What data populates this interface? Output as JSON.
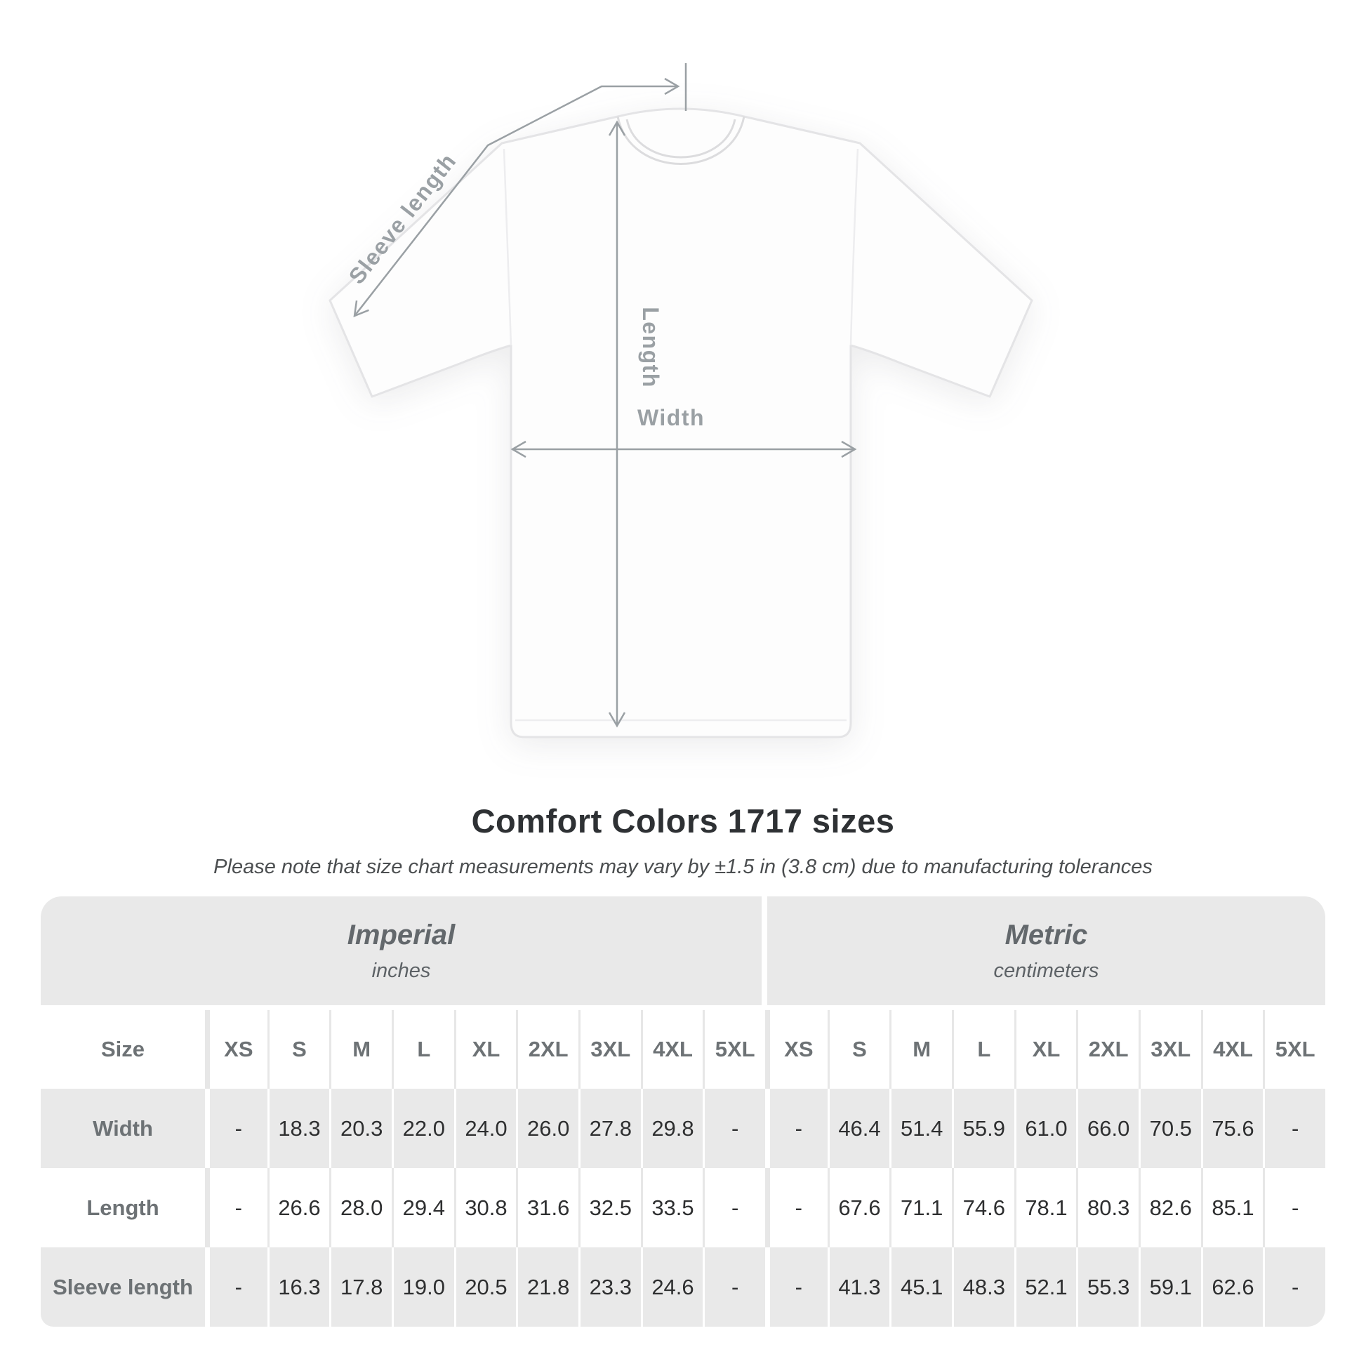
{
  "diagram": {
    "sleeve_length_label": "Sleeve length",
    "length_label": "Length",
    "width_label": "Width"
  },
  "heading": {
    "title": "Comfort Colors 1717 sizes",
    "subtitle": "Please note that size chart measurements may vary by ±1.5 in (3.8 cm) due to manufacturing tolerances"
  },
  "table": {
    "imperial": {
      "title": "Imperial",
      "unit": "inches"
    },
    "metric": {
      "title": "Metric",
      "unit": "centimeters"
    },
    "size_label": "Size",
    "sizes": [
      "XS",
      "S",
      "M",
      "L",
      "XL",
      "2XL",
      "3XL",
      "4XL",
      "5XL"
    ],
    "rows": [
      {
        "label": "Width",
        "imperial": [
          "-",
          "18.3",
          "20.3",
          "22.0",
          "24.0",
          "26.0",
          "27.8",
          "29.8",
          "-"
        ],
        "metric": [
          "-",
          "46.4",
          "51.4",
          "55.9",
          "61.0",
          "66.0",
          "70.5",
          "75.6",
          "-"
        ]
      },
      {
        "label": "Length",
        "imperial": [
          "-",
          "26.6",
          "28.0",
          "29.4",
          "30.8",
          "31.6",
          "32.5",
          "33.5",
          "-"
        ],
        "metric": [
          "-",
          "67.6",
          "71.1",
          "74.6",
          "78.1",
          "80.3",
          "82.6",
          "85.1",
          "-"
        ]
      },
      {
        "label": "Sleeve length",
        "imperial": [
          "-",
          "16.3",
          "17.8",
          "19.0",
          "20.5",
          "21.8",
          "23.3",
          "24.6",
          "-"
        ],
        "metric": [
          "-",
          "41.3",
          "45.1",
          "48.3",
          "52.1",
          "55.3",
          "59.1",
          "62.6",
          "-"
        ]
      }
    ]
  },
  "colors": {
    "table_band_gray": "#e9e9e9",
    "header_text_gray": "#6d7275",
    "value_text": "#2e2f30",
    "dimension_line_gray": "#9aa0a4",
    "title_text": "#2e3134"
  }
}
